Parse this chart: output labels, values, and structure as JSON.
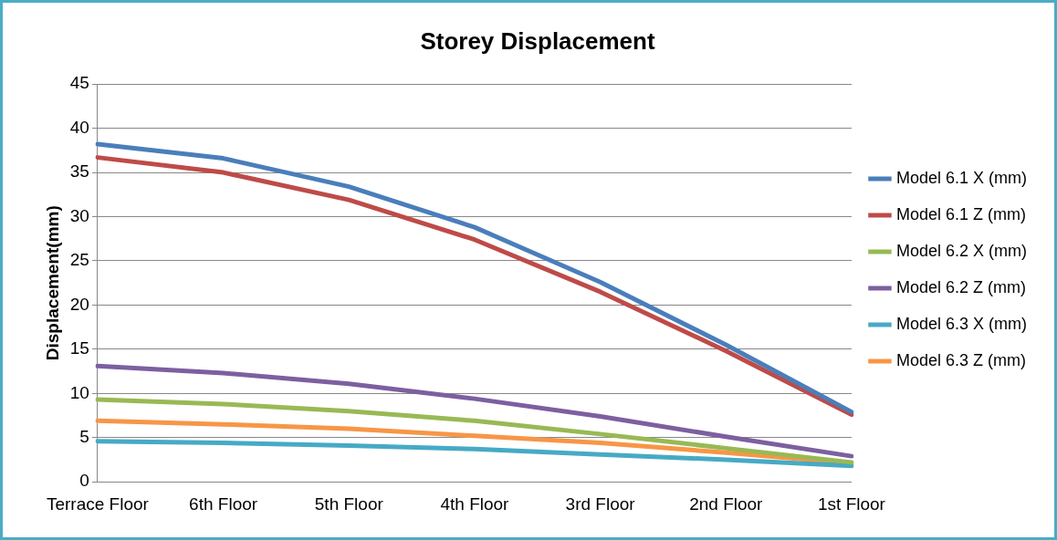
{
  "chart_data": {
    "type": "line",
    "title": "Storey Displacement",
    "ylabel": "Displacement(mm)",
    "categories": [
      "Terrace Floor",
      "6th Floor",
      "5th Floor",
      "4th Floor",
      "3rd Floor",
      "2nd Floor",
      "1st Floor"
    ],
    "series": [
      {
        "name": "Model 6.1 X (mm)",
        "color": "#4a7ebb",
        "values": [
          38.2,
          36.6,
          33.4,
          28.8,
          22.6,
          15.5,
          7.9
        ]
      },
      {
        "name": "Model 6.1 Z (mm)",
        "color": "#be4b48",
        "values": [
          36.7,
          35.0,
          31.9,
          27.4,
          21.5,
          14.8,
          7.6
        ]
      },
      {
        "name": "Model 6.2 X (mm)",
        "color": "#98b954",
        "values": [
          9.3,
          8.8,
          8.0,
          6.9,
          5.4,
          3.8,
          2.2
        ]
      },
      {
        "name": "Model 6.2 Z (mm)",
        "color": "#7d5fa0",
        "values": [
          13.1,
          12.3,
          11.1,
          9.4,
          7.4,
          5.1,
          2.9
        ]
      },
      {
        "name": "Model 6.3 X (mm)",
        "color": "#46aac5",
        "values": [
          4.6,
          4.4,
          4.1,
          3.7,
          3.1,
          2.5,
          1.8
        ]
      },
      {
        "name": "Model 6.3 Z (mm)",
        "color": "#f79646",
        "values": [
          6.9,
          6.5,
          6.0,
          5.2,
          4.4,
          3.3,
          2.1
        ]
      }
    ],
    "ylim": [
      0,
      45
    ],
    "yticks": [
      0,
      5,
      10,
      15,
      20,
      25,
      30,
      35,
      40,
      45
    ],
    "grid": "y",
    "legend": "right",
    "marker": "none",
    "line_style": "solid"
  }
}
